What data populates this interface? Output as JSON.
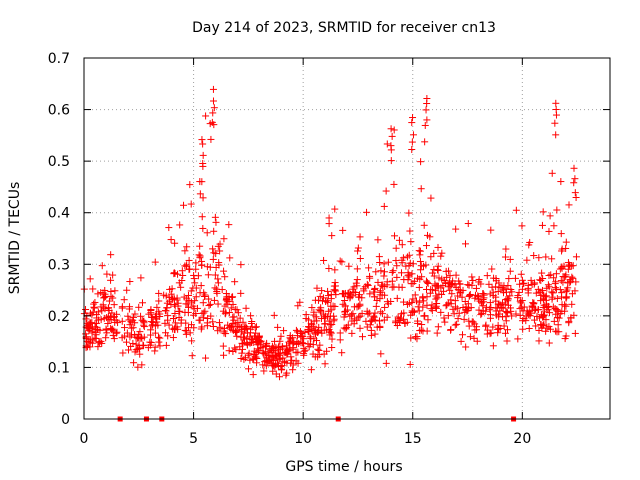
{
  "chart_data": {
    "type": "scatter",
    "title": "Day 214 of 2023, SRMTID for receiver cn13",
    "xlabel": "GPS time / hours",
    "ylabel": "SRMTID / TECUs",
    "xlim": [
      0,
      24
    ],
    "ylim": [
      0,
      0.7
    ],
    "xticks": [
      0,
      5,
      10,
      15,
      20
    ],
    "xtick_labels": [
      "0",
      "5",
      "10",
      "15",
      "20"
    ],
    "yticks": [
      0,
      0.1,
      0.2,
      0.3,
      0.4,
      0.5,
      0.6,
      0.7
    ],
    "ytick_labels": [
      "0",
      "0.1",
      "0.2",
      "0.3",
      "0.4",
      "0.5",
      "0.6",
      "0.7"
    ],
    "grid": true,
    "marker": "+",
    "color": "#ff0000",
    "envelope": {
      "description": "approximate median and upper spread of SRMTID vs time",
      "x": [
        0.0,
        0.5,
        1.0,
        1.5,
        2.0,
        2.5,
        3.0,
        3.5,
        4.0,
        4.5,
        5.0,
        5.5,
        6.0,
        6.5,
        7.0,
        7.5,
        8.0,
        8.5,
        9.0,
        9.5,
        10.0,
        10.5,
        11.0,
        11.5,
        12.0,
        12.5,
        13.0,
        13.5,
        14.0,
        14.5,
        15.0,
        15.5,
        16.0,
        16.5,
        17.0,
        17.5,
        18.0,
        18.5,
        19.0,
        19.5,
        20.0,
        20.5,
        21.0,
        21.5,
        22.0,
        22.5
      ],
      "median": [
        0.17,
        0.18,
        0.2,
        0.19,
        0.17,
        0.15,
        0.18,
        0.19,
        0.22,
        0.24,
        0.23,
        0.26,
        0.27,
        0.22,
        0.17,
        0.15,
        0.14,
        0.13,
        0.12,
        0.13,
        0.15,
        0.17,
        0.2,
        0.22,
        0.23,
        0.22,
        0.22,
        0.24,
        0.26,
        0.25,
        0.25,
        0.26,
        0.27,
        0.25,
        0.23,
        0.22,
        0.22,
        0.23,
        0.22,
        0.22,
        0.24,
        0.23,
        0.22,
        0.25,
        0.26,
        0.26
      ],
      "spread": [
        0.05,
        0.06,
        0.08,
        0.06,
        0.05,
        0.05,
        0.06,
        0.07,
        0.08,
        0.09,
        0.1,
        0.14,
        0.13,
        0.08,
        0.06,
        0.05,
        0.04,
        0.04,
        0.04,
        0.04,
        0.05,
        0.06,
        0.08,
        0.08,
        0.08,
        0.07,
        0.08,
        0.1,
        0.13,
        0.12,
        0.12,
        0.13,
        0.11,
        0.08,
        0.08,
        0.08,
        0.08,
        0.09,
        0.07,
        0.08,
        0.09,
        0.09,
        0.08,
        0.12,
        0.12,
        0.1
      ]
    },
    "peaks": [
      {
        "x": 5.9,
        "y": 0.64
      },
      {
        "x": 5.4,
        "y": 0.55
      },
      {
        "x": 15.6,
        "y": 0.63
      },
      {
        "x": 15.0,
        "y": 0.59
      },
      {
        "x": 21.5,
        "y": 0.62
      },
      {
        "x": 14.0,
        "y": 0.57
      },
      {
        "x": 22.4,
        "y": 0.49
      }
    ],
    "gap_markers_x": [
      1.65,
      2.85,
      3.55,
      11.6,
      19.6
    ]
  }
}
